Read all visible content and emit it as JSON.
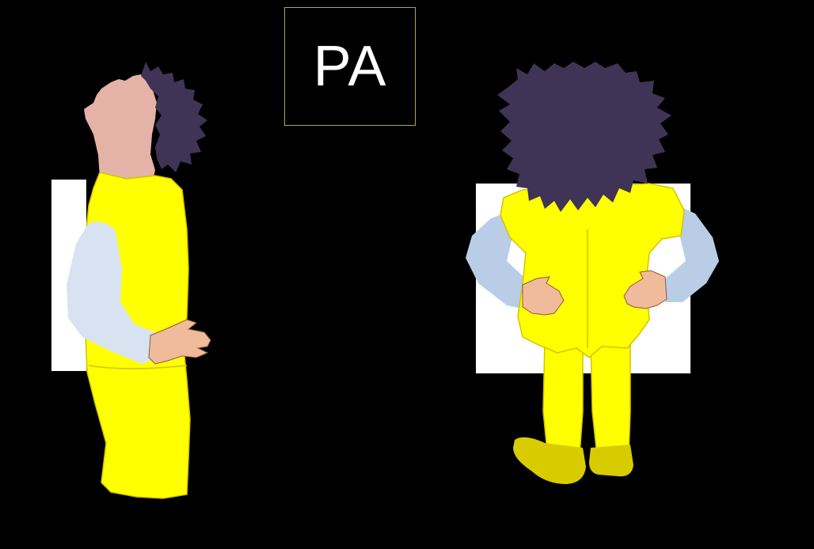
{
  "title": "PA",
  "colors": {
    "background": "#000000",
    "box_border": "#a9a55a",
    "title_text": "#ffffff",
    "gown": "#ffff00",
    "gown_outline": "#d2c400",
    "shoes": "#d8cc00",
    "sleeve": "#d8e3f2",
    "hair": "#3f3455",
    "skin": "#e5b2a7",
    "hand": "#f0bb9a",
    "plate": "#ffffff"
  },
  "figures": [
    {
      "name": "lateral-view-patient"
    },
    {
      "name": "pa-view-patient"
    }
  ]
}
